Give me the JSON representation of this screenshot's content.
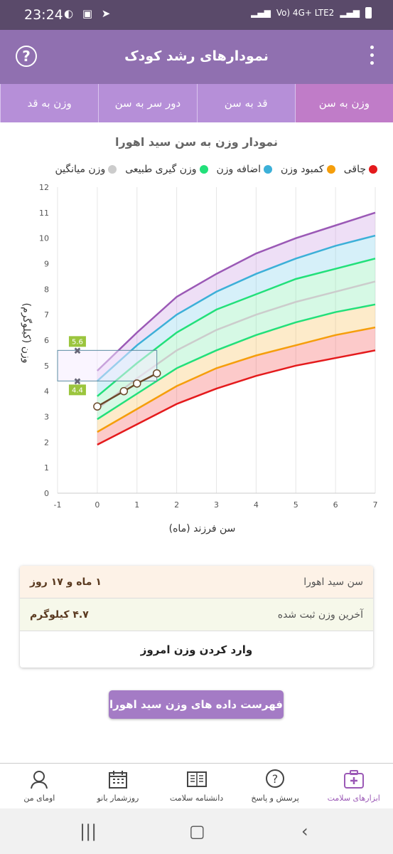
{
  "status": {
    "time": "23:24",
    "network": "Vo) 4G+ LTE2"
  },
  "appbar": {
    "title": "نمودارهای رشد کودک"
  },
  "tabs": [
    {
      "label": "وزن به سن",
      "active": true
    },
    {
      "label": "قد به سن",
      "active": false
    },
    {
      "label": "دور سر به سن",
      "active": false
    },
    {
      "label": "وزن به قد",
      "active": false
    }
  ],
  "chart_title": "نمودار وزن به سن  سید اهورا",
  "legend": [
    {
      "label": "چاقی",
      "color": "#e41a1c"
    },
    {
      "label": "کمبود وزن",
      "color": "#f59e0b"
    },
    {
      "label": "اضافه وزن",
      "color": "#3cb0d8"
    },
    {
      "label": "وزن گیری طبیعی",
      "color": "#22e07a"
    },
    {
      "label": "وزن میانگین",
      "color": "#cccccc"
    }
  ],
  "chart_data": {
    "type": "line",
    "xlabel": "سن فرزند (ماه)",
    "ylabel": "وزن (کیلوگرم)",
    "xlim": [
      -1,
      7
    ],
    "ylim": [
      0,
      12
    ],
    "x_ticks": [
      -1,
      0,
      1,
      2,
      3,
      4,
      5,
      6,
      7
    ],
    "y_ticks": [
      0,
      1,
      2,
      3,
      4,
      5,
      6,
      7,
      8,
      9,
      10,
      11,
      12
    ],
    "x": [
      0,
      1,
      2,
      3,
      4,
      5,
      6,
      7
    ],
    "series": [
      {
        "values": [
          1.9,
          2.7,
          3.5,
          4.1,
          4.6,
          5.0,
          5.3,
          5.6
        ],
        "color": "#e41a1c"
      },
      {
        "values": [
          2.4,
          3.3,
          4.2,
          4.9,
          5.4,
          5.8,
          6.2,
          6.5
        ],
        "color": "#f59e0b"
      },
      {
        "values": [
          2.9,
          3.9,
          4.9,
          5.6,
          6.2,
          6.7,
          7.1,
          7.4
        ],
        "color": "#22e07a"
      },
      {
        "values": [
          3.3,
          4.5,
          5.6,
          6.4,
          7.0,
          7.5,
          7.9,
          8.3
        ],
        "color": "#cccccc"
      },
      {
        "values": [
          3.8,
          5.1,
          6.3,
          7.2,
          7.8,
          8.4,
          8.8,
          9.2
        ],
        "color": "#22e07a"
      },
      {
        "values": [
          4.4,
          5.8,
          7.0,
          7.9,
          8.6,
          9.2,
          9.7,
          10.1
        ],
        "color": "#3cb0d8"
      },
      {
        "values": [
          4.8,
          6.3,
          7.7,
          8.6,
          9.4,
          10.0,
          10.5,
          11.0
        ],
        "color": "#9b59b6"
      }
    ],
    "child_points": {
      "x": [
        0,
        0.67,
        1.0,
        1.5
      ],
      "y": [
        3.4,
        4.0,
        4.3,
        4.7
      ]
    },
    "range_box": {
      "x_from": -1,
      "x_to": 1.5,
      "y_low": 4.4,
      "y_high": 5.6,
      "marker_x": -0.5,
      "low_label": "4.4",
      "high_label": "5.6"
    }
  },
  "info": {
    "age_label": "سن  سید اهورا",
    "age_value": "۱ ماه و ۱۷ روز",
    "weight_label": "آخرین وزن ثبت شده",
    "weight_value": "۴.۷ کیلوگرم",
    "enter_label": "وارد کردن وزن امروز"
  },
  "list_button": "فهرست داده های وزن  سید اهورا",
  "bottom_nav": [
    {
      "label": "ابزارهای سلامت",
      "icon": "medkit-icon",
      "active": true
    },
    {
      "label": "پرسش و پاسخ",
      "icon": "question-bubble-icon",
      "active": false
    },
    {
      "label": "دانشنامه سلامت",
      "icon": "encyclopedia-icon",
      "active": false
    },
    {
      "label": "روزشمار بانو",
      "icon": "calendar-icon",
      "active": false
    },
    {
      "label": "اومای من",
      "icon": "profile-icon",
      "active": false
    }
  ]
}
